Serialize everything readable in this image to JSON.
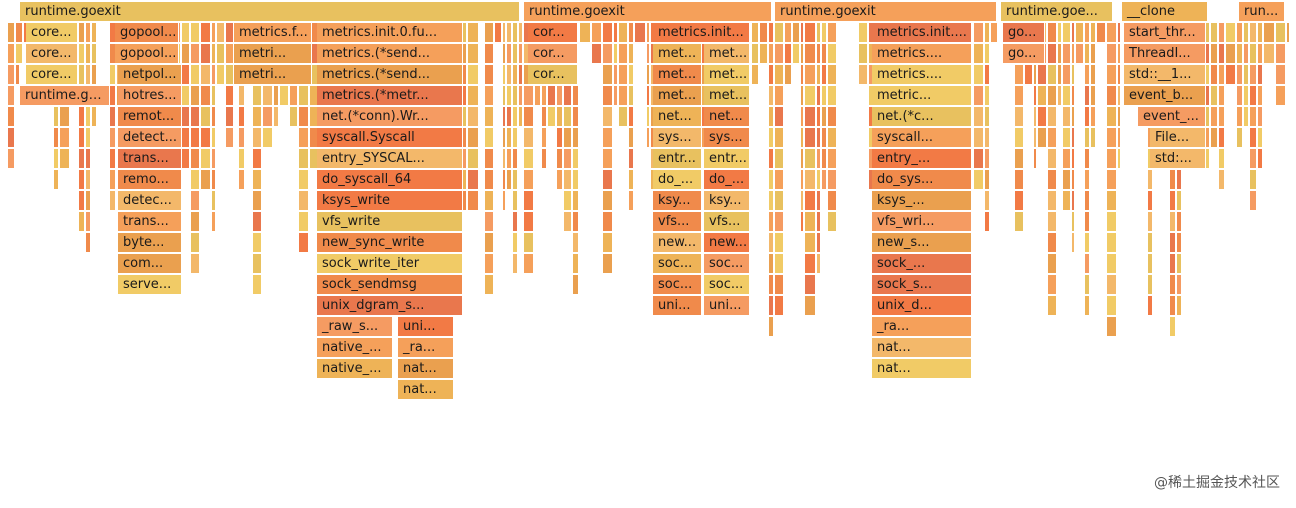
{
  "chart_data": {
    "type": "flamegraph",
    "watermark": "@稀土掘金技术社区",
    "columns": [
      {
        "root": "runtime.goexit",
        "stacks": [
          [
            "core..."
          ],
          [
            "core..."
          ],
          [
            "core..."
          ],
          [
            "runtime.goexit"
          ]
        ]
      },
      {
        "stacks": [
          [
            "gopool...",
            "gopool...",
            "netpol...",
            "hotres...",
            "remot...",
            "detect...",
            "trans...",
            "remo...",
            "detec...",
            "trans...",
            "byte...",
            "com...",
            "serve..."
          ]
        ]
      },
      {
        "stacks": [
          [
            "metrics.f...",
            "metri...",
            "metri..."
          ],
          [
            "metrics.init.0.fu...",
            "metrics.(*send...",
            "metrics.(*send...",
            "metrics.(*metr...",
            "net.(*conn).Wr...",
            "syscall.Syscall",
            "entry_SYSCAL...",
            "do_syscall_64",
            "ksys_write",
            "vfs_write",
            "new_sync_write",
            "sock_write_iter",
            "sock_sendmsg",
            "unix_dgram_s...",
            "_raw_s...",
            "native_...",
            "native_..."
          ],
          [
            "uni...",
            "_ra...",
            "nat...",
            "nat..."
          ]
        ]
      },
      {
        "root": "runtime.goexit",
        "stacks": [
          [
            "cor...",
            "cor...",
            "cor..."
          ],
          [
            "metrics.init...",
            "met...",
            "met...",
            "met...",
            "net...",
            "sys...",
            "entr...",
            "do_...",
            "ksy...",
            "vfs...",
            "new...",
            "soc...",
            "soc...",
            "uni..."
          ],
          [
            "met...",
            "met...",
            "met...",
            "net...",
            "sys...",
            "entr...",
            "do_...",
            "ksy...",
            "vfs...",
            "new...",
            "soc...",
            "soc...",
            "uni..."
          ]
        ]
      },
      {
        "root": "runtime.goexit",
        "stacks": [
          [
            "metrics.init....",
            "metrics....",
            "metrics....",
            "metric...",
            "net.(*c...",
            "syscall...",
            "entry_...",
            "do_sys...",
            "ksys_...",
            "vfs_wri...",
            "new_s...",
            "sock_...",
            "sock_s...",
            "unix_d...",
            "_ra...",
            "nat...",
            "nat..."
          ]
        ]
      },
      {
        "root": "runtime.goe...",
        "stacks": [
          [
            "go...",
            "go..."
          ]
        ]
      },
      {
        "root": "__clone",
        "stacks": [
          [
            "start_thr...",
            "ThreadI...",
            "std::__1...",
            "event_b...",
            "event_...",
            "File...",
            "std:..."
          ]
        ]
      },
      {
        "root": "run...",
        "stacks": []
      }
    ]
  }
}
